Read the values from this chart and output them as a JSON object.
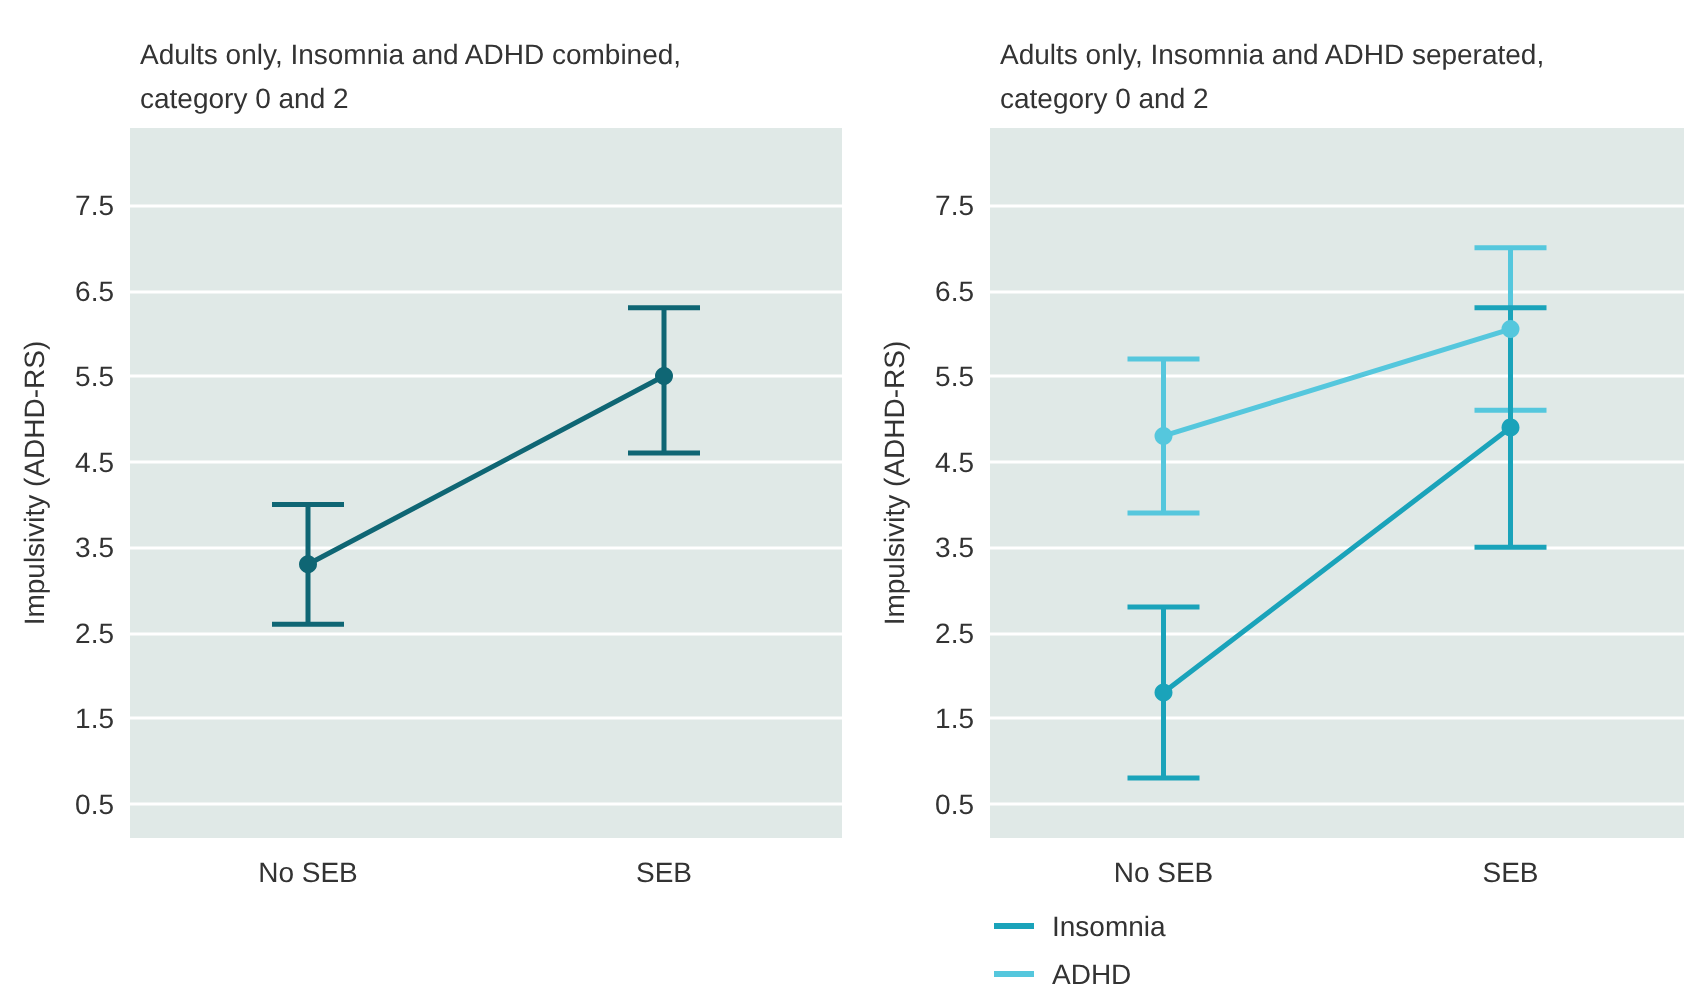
{
  "chart_data": [
    {
      "type": "line",
      "title": "Adults only, Insomnia and ADHD combined, category 0 and 2",
      "ylabel": "Impulsivity (ADHD-RS)",
      "categories": [
        "No SEB",
        "SEB"
      ],
      "series": [
        {
          "color": "#0f6674",
          "values": [
            3.3,
            5.5
          ],
          "errors": [
            [
              2.6,
              4.0
            ],
            [
              4.6,
              6.3
            ]
          ]
        }
      ],
      "ylim": [
        0.1,
        8.4
      ],
      "yticks": [
        0.5,
        1.5,
        2.5,
        3.5,
        4.5,
        5.5,
        6.5,
        7.5
      ],
      "grid": "y",
      "marker": "circle"
    },
    {
      "type": "line",
      "title": "Adults only, Insomnia and ADHD seperated, category 0 and 2",
      "ylabel": "Impulsivity (ADHD-RS)",
      "categories": [
        "No SEB",
        "SEB"
      ],
      "series": [
        {
          "name": "Insomnia",
          "color": "#1aa3ba",
          "values": [
            1.8,
            4.9
          ],
          "errors": [
            [
              0.8,
              2.8
            ],
            [
              3.5,
              6.3
            ]
          ]
        },
        {
          "name": "ADHD",
          "color": "#55c7dd",
          "values": [
            4.8,
            6.05
          ],
          "errors": [
            [
              3.9,
              5.7
            ],
            [
              5.1,
              7.0
            ]
          ]
        }
      ],
      "ylim": [
        0.1,
        8.4
      ],
      "yticks": [
        0.5,
        1.5,
        2.5,
        3.5,
        4.5,
        5.5,
        6.5,
        7.5
      ],
      "grid": "y",
      "marker": "circle",
      "legend": "bottom left"
    }
  ]
}
